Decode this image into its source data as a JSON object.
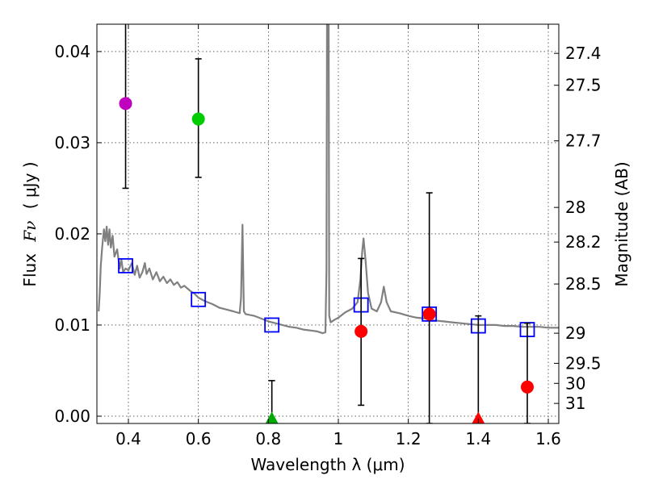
{
  "chart_data": {
    "type": "scatter",
    "xlabel": "Wavelength  λ (μm)",
    "ylabel_prefix": "Flux",
    "ylabel_symbol": "Fν",
    "ylabel_unit": "( μJy )",
    "ylabel_right": "Magnitude (AB)",
    "xlim": [
      0.31,
      1.63
    ],
    "ylim": [
      -0.0008,
      0.043
    ],
    "grid": true,
    "x_ticks": [
      {
        "value": 0.4,
        "label": "0.4"
      },
      {
        "value": 0.6,
        "label": "0.6"
      },
      {
        "value": 0.8,
        "label": "0.8"
      },
      {
        "value": 1.0,
        "label": "1"
      },
      {
        "value": 1.2,
        "label": "1.2"
      },
      {
        "value": 1.4,
        "label": "1.4"
      },
      {
        "value": 1.6,
        "label": "1.6"
      }
    ],
    "y_ticks": [
      {
        "value": 0.0,
        "label": "0.00"
      },
      {
        "value": 0.01,
        "label": "0.01"
      },
      {
        "value": 0.02,
        "label": "0.02"
      },
      {
        "value": 0.03,
        "label": "0.03"
      },
      {
        "value": 0.04,
        "label": "0.04"
      }
    ],
    "mag_ticks": [
      {
        "flux": 0.0398,
        "label": "27.4"
      },
      {
        "flux": 0.0363,
        "label": "27.5"
      },
      {
        "flux": 0.0302,
        "label": "27.7"
      },
      {
        "flux": 0.0229,
        "label": "28"
      },
      {
        "flux": 0.0191,
        "label": "28.2"
      },
      {
        "flux": 0.0145,
        "label": "28.5"
      },
      {
        "flux": 0.0091,
        "label": "29"
      },
      {
        "flux": 0.0058,
        "label": "29.5"
      },
      {
        "flux": 0.0036,
        "label": "30"
      },
      {
        "flux": 0.0014,
        "label": "31"
      }
    ],
    "sed_template": {
      "name": "SED model",
      "color": "#808080",
      "points": [
        [
          0.315,
          0.0115
        ],
        [
          0.318,
          0.0135
        ],
        [
          0.321,
          0.0165
        ],
        [
          0.325,
          0.0185
        ],
        [
          0.33,
          0.0205
        ],
        [
          0.334,
          0.0192
        ],
        [
          0.338,
          0.0208
        ],
        [
          0.342,
          0.0188
        ],
        [
          0.346,
          0.0205
        ],
        [
          0.35,
          0.0185
        ],
        [
          0.355,
          0.0198
        ],
        [
          0.36,
          0.0175
        ],
        [
          0.368,
          0.0183
        ],
        [
          0.375,
          0.0162
        ],
        [
          0.38,
          0.0172
        ],
        [
          0.385,
          0.0158
        ],
        [
          0.392,
          0.0162
        ],
        [
          0.4,
          0.016
        ],
        [
          0.41,
          0.0168
        ],
        [
          0.418,
          0.0155
        ],
        [
          0.425,
          0.0165
        ],
        [
          0.432,
          0.0152
        ],
        [
          0.44,
          0.0158
        ],
        [
          0.447,
          0.0168
        ],
        [
          0.452,
          0.0156
        ],
        [
          0.46,
          0.0162
        ],
        [
          0.47,
          0.015
        ],
        [
          0.48,
          0.0158
        ],
        [
          0.49,
          0.0148
        ],
        [
          0.5,
          0.0153
        ],
        [
          0.51,
          0.0146
        ],
        [
          0.52,
          0.015
        ],
        [
          0.53,
          0.0144
        ],
        [
          0.54,
          0.0147
        ],
        [
          0.55,
          0.0141
        ],
        [
          0.56,
          0.0143
        ],
        [
          0.575,
          0.0138
        ],
        [
          0.59,
          0.0134
        ],
        [
          0.6,
          0.013
        ],
        [
          0.62,
          0.0126
        ],
        [
          0.64,
          0.0123
        ],
        [
          0.66,
          0.0119
        ],
        [
          0.68,
          0.0117
        ],
        [
          0.7,
          0.0115
        ],
        [
          0.718,
          0.0113
        ],
        [
          0.722,
          0.013
        ],
        [
          0.726,
          0.021
        ],
        [
          0.73,
          0.0115
        ],
        [
          0.735,
          0.0112
        ],
        [
          0.76,
          0.011
        ],
        [
          0.78,
          0.0107
        ],
        [
          0.8,
          0.0104
        ],
        [
          0.82,
          0.0102
        ],
        [
          0.84,
          0.01
        ],
        [
          0.86,
          0.0098
        ],
        [
          0.88,
          0.0097
        ],
        [
          0.9,
          0.0095
        ],
        [
          0.92,
          0.0094
        ],
        [
          0.94,
          0.0093
        ],
        [
          0.955,
          0.0091
        ],
        [
          0.963,
          0.0092
        ],
        [
          0.966,
          0.016
        ],
        [
          0.968,
          0.048
        ],
        [
          0.972,
          0.048
        ],
        [
          0.974,
          0.011
        ],
        [
          0.978,
          0.0103
        ],
        [
          0.99,
          0.0106
        ],
        [
          1.0,
          0.0108
        ],
        [
          1.02,
          0.0114
        ],
        [
          1.04,
          0.0118
        ],
        [
          1.055,
          0.0125
        ],
        [
          1.063,
          0.015
        ],
        [
          1.068,
          0.018
        ],
        [
          1.072,
          0.0195
        ],
        [
          1.078,
          0.017
        ],
        [
          1.085,
          0.0135
        ],
        [
          1.095,
          0.0118
        ],
        [
          1.11,
          0.0115
        ],
        [
          1.122,
          0.0125
        ],
        [
          1.13,
          0.0142
        ],
        [
          1.138,
          0.0125
        ],
        [
          1.15,
          0.0115
        ],
        [
          1.175,
          0.0113
        ],
        [
          1.2,
          0.011
        ],
        [
          1.225,
          0.0108
        ],
        [
          1.25,
          0.0107
        ],
        [
          1.275,
          0.0105
        ],
        [
          1.3,
          0.0104
        ],
        [
          1.325,
          0.0103
        ],
        [
          1.35,
          0.0102
        ],
        [
          1.375,
          0.0101
        ],
        [
          1.4,
          0.01
        ],
        [
          1.425,
          0.01
        ],
        [
          1.45,
          0.01
        ],
        [
          1.475,
          0.0099
        ],
        [
          1.5,
          0.0099
        ],
        [
          1.525,
          0.0098
        ],
        [
          1.55,
          0.0098
        ],
        [
          1.575,
          0.0098
        ],
        [
          1.6,
          0.0097
        ],
        [
          1.63,
          0.0097
        ]
      ]
    },
    "model_fluxes": {
      "name": "Model band fluxes",
      "color": "#0000ff",
      "points": [
        {
          "x": 0.392,
          "y": 0.0165
        },
        {
          "x": 0.6,
          "y": 0.0128
        },
        {
          "x": 0.81,
          "y": 0.01
        },
        {
          "x": 1.065,
          "y": 0.0122
        },
        {
          "x": 1.26,
          "y": 0.0112
        },
        {
          "x": 1.4,
          "y": 0.0099
        },
        {
          "x": 1.54,
          "y": 0.0095
        }
      ]
    },
    "observations": [
      {
        "x": 0.392,
        "y": 0.0343,
        "yerr_low": 0.025,
        "yerr_high": 0.046,
        "color": "#bf00bf",
        "marker": "circle"
      },
      {
        "x": 0.6,
        "y": 0.0326,
        "yerr_low": 0.0262,
        "yerr_high": 0.0392,
        "color": "#00cc00",
        "marker": "circle"
      },
      {
        "x": 0.81,
        "y": -0.0003,
        "yerr_low": -0.0008,
        "yerr_high": 0.0039,
        "color": "#00aa00",
        "marker": "triangle"
      },
      {
        "x": 1.065,
        "y": 0.0093,
        "yerr_low": 0.0012,
        "yerr_high": 0.0173,
        "color": "#ff0000",
        "marker": "circle"
      },
      {
        "x": 1.26,
        "y": 0.0112,
        "yerr_low": -0.0008,
        "yerr_high": 0.0245,
        "color": "#ff0000",
        "marker": "circle"
      },
      {
        "x": 1.4,
        "y": -0.0003,
        "yerr_low": -0.0008,
        "yerr_high": 0.011,
        "color": "#ff0000",
        "marker": "triangle"
      },
      {
        "x": 1.54,
        "y": 0.0032,
        "yerr_low": -0.0008,
        "yerr_high": 0.0102,
        "color": "#ff0000",
        "marker": "circle"
      }
    ]
  }
}
